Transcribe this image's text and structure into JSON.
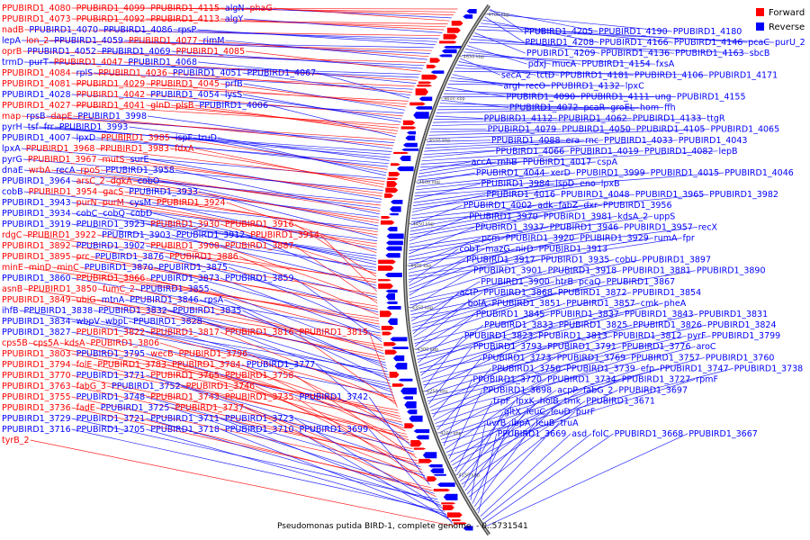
{
  "caption": "Pseudomonas putida BIRD-1, complete genome. - 0..5731541",
  "legend": {
    "forward_label": "Forward",
    "reverse_label": "Reverse",
    "forward_color": "#ff0000",
    "reverse_color": "#0000ff"
  },
  "ticks": [
    "4700 kbp",
    "4650 kbp",
    "4600 kbp",
    "4550 kbp",
    "4500 kbp",
    "4450 kbp",
    "4400 kbp",
    "4350 kbp",
    "4300 kbp",
    "4250 kbp",
    "4200 kbp",
    "4150 kbp"
  ],
  "left_labels": [
    {
      "t": "PPUBIRD1_4080",
      "s": "f"
    },
    {
      "t": "PPUBIRD1_4099",
      "s": "f"
    },
    {
      "t": "PPUBIRD1_4115",
      "s": "f"
    },
    {
      "t": "algN",
      "s": "r"
    },
    {
      "t": "phaG",
      "s": "f"
    },
    {
      "t": "PPUBIRD1_4073",
      "s": "f"
    },
    {
      "t": "PPUBIRD1_4092",
      "s": "f"
    },
    {
      "t": "PPUBIRD1_4113",
      "s": "f"
    },
    {
      "t": "algY",
      "s": "r"
    },
    {
      "t": "nadB",
      "s": "f"
    },
    {
      "t": "PPUBIRD1_4070",
      "s": "r"
    },
    {
      "t": "PPUBIRD1_4086",
      "s": "r"
    },
    {
      "t": "rpsP",
      "s": "r"
    },
    {
      "t": "lepA",
      "s": "r"
    },
    {
      "t": "lon_2",
      "s": "f"
    },
    {
      "t": "PPUBIRD1_4059",
      "s": "r"
    },
    {
      "t": "PPUBIRD1_4077",
      "s": "f"
    },
    {
      "t": "rimM",
      "s": "r"
    },
    {
      "t": "oprB",
      "s": "f"
    },
    {
      "t": "PPUBIRD1_4052",
      "s": "r"
    },
    {
      "t": "PPUBIRD1_4069",
      "s": "r"
    },
    {
      "t": "PPUBIRD1_4085",
      "s": "f"
    },
    {
      "t": "trmD",
      "s": "r"
    },
    {
      "t": "purT",
      "s": "r"
    },
    {
      "t": "PPUBIRD1_4047",
      "s": "f"
    },
    {
      "t": "PPUBIRD1_4068",
      "s": "r"
    },
    {
      "t": "PPUBIRD1_4084",
      "s": "f"
    },
    {
      "t": "rplS",
      "s": "r"
    },
    {
      "t": "PPUBIRD1_4036",
      "s": "f"
    },
    {
      "t": "PPUBIRD1_4051",
      "s": "r"
    },
    {
      "t": "PPUBIRD1_4067",
      "s": "r"
    },
    {
      "t": "PPUBIRD1_4081",
      "s": "f"
    },
    {
      "t": "PPUBIRD1_4029",
      "s": "f"
    },
    {
      "t": "PPUBIRD1_4045",
      "s": "f"
    },
    {
      "t": "prfB",
      "s": "r"
    },
    {
      "t": "PPUBIRD1_4028",
      "s": "r"
    },
    {
      "t": "PPUBIRD1_4042",
      "s": "f"
    },
    {
      "t": "PPUBIRD1_4054",
      "s": "r"
    },
    {
      "t": "lysS",
      "s": "r"
    },
    {
      "t": "PPUBIRD1_4027",
      "s": "f"
    },
    {
      "t": "PPUBIRD1_4041",
      "s": "f"
    },
    {
      "t": "glnD",
      "s": "f"
    },
    {
      "t": "plsB",
      "s": "f"
    },
    {
      "t": "PPUBIRD1_4006",
      "s": "r"
    },
    {
      "t": "map",
      "s": "f"
    },
    {
      "t": "rpsB",
      "s": "r"
    },
    {
      "t": "dapE",
      "s": "f"
    },
    {
      "t": "PPUBIRD1_3998",
      "s": "r"
    },
    {
      "t": "pyrH",
      "s": "r"
    },
    {
      "t": "tsf",
      "s": "r"
    },
    {
      "t": "frr",
      "s": "r"
    },
    {
      "t": "PPUBIRD1_3993",
      "s": "r"
    },
    {
      "t": "PPUBIRD1_4007",
      "s": "r"
    },
    {
      "t": "lpxD",
      "s": "r"
    },
    {
      "t": "PPUBIRD1_3985",
      "s": "f"
    },
    {
      "t": "ispF",
      "s": "r"
    },
    {
      "t": "truD",
      "s": "r"
    },
    {
      "t": "lpxA",
      "s": "r"
    },
    {
      "t": "PPUBIRD1_3968",
      "s": "f"
    },
    {
      "t": "PPUBIRD1_3983",
      "s": "f"
    },
    {
      "t": "fdxA",
      "s": "f"
    },
    {
      "t": "pyrG",
      "s": "r"
    },
    {
      "t": "PPUBIRD1_3967",
      "s": "f"
    },
    {
      "t": "mutS",
      "s": "f"
    },
    {
      "t": "surE",
      "s": "r"
    },
    {
      "t": "dnaE",
      "s": "r"
    },
    {
      "t": "wrbA",
      "s": "f"
    },
    {
      "t": "recA",
      "s": "r"
    },
    {
      "t": "rpoS",
      "s": "f"
    },
    {
      "t": "PPUBIRD1_3958",
      "s": "r"
    },
    {
      "t": "PPUBIRD1_3964",
      "s": "r"
    },
    {
      "t": "arsC_2",
      "s": "f"
    },
    {
      "t": "dgkA",
      "s": "f"
    },
    {
      "t": "cobO",
      "s": "r"
    },
    {
      "t": "cobB",
      "s": "r"
    },
    {
      "t": "PPUBIRD1_3954",
      "s": "f"
    },
    {
      "t": "gacS",
      "s": "f"
    },
    {
      "t": "PPUBIRD1_3933",
      "s": "r"
    },
    {
      "t": "PPUBIRD1_3943",
      "s": "r"
    },
    {
      "t": "purN",
      "s": "f"
    },
    {
      "t": "purM",
      "s": "f"
    },
    {
      "t": "cysM",
      "s": "r"
    },
    {
      "t": "PPUBIRD1_3924",
      "s": "f"
    },
    {
      "t": "PPUBIRD1_3934",
      "s": "r"
    },
    {
      "t": "cobC",
      "s": "r"
    },
    {
      "t": "cobQ",
      "s": "r"
    },
    {
      "t": "cobD",
      "s": "r"
    },
    {
      "t": "PPUBIRD1_3919",
      "s": "r"
    },
    {
      "t": "PPUBIRD1_3923",
      "s": "r"
    },
    {
      "t": "PPUBIRD1_3930",
      "s": "f"
    },
    {
      "t": "PPUBIRD1_3916",
      "s": "f"
    },
    {
      "t": "rdgC",
      "s": "f"
    },
    {
      "t": "PPUBIRD1_3922",
      "s": "f"
    },
    {
      "t": "PPUBIRD1_3903",
      "s": "r"
    },
    {
      "t": "PPUBIRD1_3912",
      "s": "r"
    },
    {
      "t": "PPUBIRD1_3914",
      "s": "f"
    },
    {
      "t": "PPUBIRD1_3892",
      "s": "f"
    },
    {
      "t": "PPUBIRD1_3902",
      "s": "r"
    },
    {
      "t": "PPUBIRD1_3908",
      "s": "f"
    },
    {
      "t": "PPUBIRD1_3887",
      "s": "f"
    },
    {
      "t": "PPUBIRD1_3895",
      "s": "f"
    },
    {
      "t": "prc",
      "s": "f"
    },
    {
      "t": "PPUBIRD1_3876",
      "s": "r"
    },
    {
      "t": "PPUBIRD1_3886",
      "s": "f"
    },
    {
      "t": "minE",
      "s": "f"
    },
    {
      "t": "minD",
      "s": "f"
    },
    {
      "t": "minC",
      "s": "f"
    },
    {
      "t": "PPUBIRD1_3870",
      "s": "r"
    },
    {
      "t": "PPUBIRD1_3875",
      "s": "r"
    },
    {
      "t": "PPUBIRD1_3860",
      "s": "r"
    },
    {
      "t": "PPUBIRD1_3866",
      "s": "f"
    },
    {
      "t": "PPUBIRD1_3873",
      "s": "r"
    },
    {
      "t": "PPUBIRD1_3859",
      "s": "r"
    },
    {
      "t": "asnB",
      "s": "f"
    },
    {
      "t": "PPUBIRD1_3850",
      "s": "f"
    },
    {
      "t": "fumC_2",
      "s": "f"
    },
    {
      "t": "PPUBIRD1_3855",
      "s": "r"
    },
    {
      "t": "PPUBIRD1_3849",
      "s": "f"
    },
    {
      "t": "ubiG",
      "s": "f"
    },
    {
      "t": "mtnA",
      "s": "r"
    },
    {
      "t": "PPUBIRD1_3846",
      "s": "r"
    },
    {
      "t": "rpsA",
      "s": "r"
    },
    {
      "t": "ihfB",
      "s": "r"
    },
    {
      "t": "PPUBIRD1_3838",
      "s": "r"
    },
    {
      "t": "PPUBIRD1_3832",
      "s": "r"
    },
    {
      "t": "PPUBIRD1_3835",
      "s": "r"
    },
    {
      "t": "PPUBIRD1_3834",
      "s": "r"
    },
    {
      "t": "wbpV",
      "s": "r"
    },
    {
      "t": "wbpL",
      "s": "r"
    },
    {
      "t": "PPUBIRD1_3828",
      "s": "r"
    },
    {
      "t": "PPUBIRD1_3827",
      "s": "r"
    },
    {
      "t": "PPUBIRD1_3822",
      "s": "f"
    },
    {
      "t": "PPUBIRD1_3817",
      "s": "f"
    },
    {
      "t": "PPUBIRD1_3816",
      "s": "f"
    },
    {
      "t": "PPUBIRD1_3815",
      "s": "f"
    },
    {
      "t": "cps5B",
      "s": "f"
    },
    {
      "t": "cps5A",
      "s": "f"
    },
    {
      "t": "kdsA",
      "s": "f"
    },
    {
      "t": "PPUBIRD1_3806",
      "s": "f"
    },
    {
      "t": "PPUBIRD1_3803",
      "s": "f"
    },
    {
      "t": "PPUBIRD1_3795",
      "s": "r"
    },
    {
      "t": "wecB",
      "s": "f"
    },
    {
      "t": "PPUBIRD1_3796",
      "s": "f"
    },
    {
      "t": "PPUBIRD1_3794",
      "s": "f"
    },
    {
      "t": "folE",
      "s": "f"
    },
    {
      "t": "PPUBIRD1_3783",
      "s": "f"
    },
    {
      "t": "PPUBIRD1_3784",
      "s": "f"
    },
    {
      "t": "PPUBIRD1_3777",
      "s": "r"
    },
    {
      "t": "PPUBIRD1_3770",
      "s": "f"
    },
    {
      "t": "PPUBIRD1_3771",
      "s": "r"
    },
    {
      "t": "PPUBIRD1_3765",
      "s": "f"
    },
    {
      "t": "PPUBIRD1_3758",
      "s": "f"
    },
    {
      "t": "PPUBIRD1_3763",
      "s": "f"
    },
    {
      "t": "fabG_3",
      "s": "f"
    },
    {
      "t": "PPUBIRD1_3752",
      "s": "r"
    },
    {
      "t": "PPUBIRD1_3746",
      "s": "f"
    },
    {
      "t": "PPUBIRD1_3755",
      "s": "f"
    },
    {
      "t": "PPUBIRD1_3748",
      "s": "r"
    },
    {
      "t": "PPUBIRD1_3743",
      "s": "f"
    },
    {
      "t": "PPUBIRD1_3735",
      "s": "f"
    },
    {
      "t": "PPUBIRD1_3742",
      "s": "r"
    },
    {
      "t": "PPUBIRD1_3736",
      "s": "f"
    },
    {
      "t": "fadE",
      "s": "f"
    },
    {
      "t": "PPUBIRD1_3725",
      "s": "r"
    },
    {
      "t": "PPUBIRD1_3737",
      "s": "f"
    },
    {
      "t": "PPUBIRD1_3729",
      "s": "r"
    },
    {
      "t": "PPUBIRD1_3721",
      "s": "r"
    },
    {
      "t": "PPUBIRD1_3711",
      "s": "r"
    },
    {
      "t": "PPUBIRD1_3723",
      "s": "r"
    },
    {
      "t": "PPUBIRD1_3716",
      "s": "r"
    },
    {
      "t": "PPUBIRD1_3705",
      "s": "r"
    },
    {
      "t": "PPUBIRD1_3718",
      "s": "r"
    },
    {
      "t": "PPUBIRD1_3710",
      "s": "r"
    },
    {
      "t": "PPUBIRD1_3699",
      "s": "r"
    },
    {
      "t": "tyrB_2",
      "s": "f"
    }
  ],
  "right_labels": [
    {
      "t": "PPUBIRD1_4205",
      "s": "r"
    },
    {
      "t": "PPUBIRD1_4190",
      "s": "r"
    },
    {
      "t": "PPUBIRD1_4180",
      "s": "r"
    },
    {
      "t": "PPUBIRD1_4208",
      "s": "r"
    },
    {
      "t": "PPUBIRD1_4166",
      "s": "r"
    },
    {
      "t": "PPUBIRD1_4146",
      "s": "r"
    },
    {
      "t": "pcaC",
      "s": "r"
    },
    {
      "t": "purU_2",
      "s": "r"
    },
    {
      "t": "PPUBIRD1_4209",
      "s": "r"
    },
    {
      "t": "PPUBIRD1_4136",
      "s": "r"
    },
    {
      "t": "PPUBIRD1_4163",
      "s": "r"
    },
    {
      "t": "sbcB",
      "s": "r"
    },
    {
      "t": "pdxJ",
      "s": "r"
    },
    {
      "t": "mucA",
      "s": "r"
    },
    {
      "t": "PPUBIRD1_4154",
      "s": "r"
    },
    {
      "t": "fxsA",
      "s": "r"
    },
    {
      "t": "secA_2",
      "s": "r"
    },
    {
      "t": "tctD",
      "s": "r"
    },
    {
      "t": "PPUBIRD1_4181",
      "s": "r"
    },
    {
      "t": "PPUBIRD1_4106",
      "s": "r"
    },
    {
      "t": "PPUBIRD1_4171",
      "s": "r"
    },
    {
      "t": "argI",
      "s": "r"
    },
    {
      "t": "recO",
      "s": "r"
    },
    {
      "t": "PPUBIRD1_4132",
      "s": "r"
    },
    {
      "t": "lpxC",
      "s": "r"
    },
    {
      "t": "PPUBIRD1_4090",
      "s": "r"
    },
    {
      "t": "PPUBIRD1_4111",
      "s": "r"
    },
    {
      "t": "ung",
      "s": "r"
    },
    {
      "t": "PPUBIRD1_4155",
      "s": "r"
    },
    {
      "t": "PPUBIRD1_4072",
      "s": "r"
    },
    {
      "t": "pcaR",
      "s": "r"
    },
    {
      "t": "groEL",
      "s": "r"
    },
    {
      "t": "hom",
      "s": "r"
    },
    {
      "t": "ffh",
      "s": "r"
    },
    {
      "t": "PPUBIRD1_4112",
      "s": "r"
    },
    {
      "t": "PPUBIRD1_4062",
      "s": "r"
    },
    {
      "t": "PPUBIRD1_4133",
      "s": "r"
    },
    {
      "t": "ttgR",
      "s": "r"
    },
    {
      "t": "PPUBIRD1_4079",
      "s": "r"
    },
    {
      "t": "PPUBIRD1_4050",
      "s": "r"
    },
    {
      "t": "PPUBIRD1_4105",
      "s": "r"
    },
    {
      "t": "PPUBIRD1_4065",
      "s": "r"
    },
    {
      "t": "PPUBIRD1_4088",
      "s": "r"
    },
    {
      "t": "era",
      "s": "r"
    },
    {
      "t": "rnc",
      "s": "r"
    },
    {
      "t": "PPUBIRD1_4033",
      "s": "r"
    },
    {
      "t": "PPUBIRD1_4043",
      "s": "r"
    },
    {
      "t": "PPUBIRD1_4066",
      "s": "r"
    },
    {
      "t": "PPUBIRD1_4019",
      "s": "r"
    },
    {
      "t": "PPUBIRD1_4082",
      "s": "r"
    },
    {
      "t": "lepB",
      "s": "r"
    },
    {
      "t": "accA",
      "s": "r"
    },
    {
      "t": "rnhB",
      "s": "r"
    },
    {
      "t": "PPUBIRD1_4017",
      "s": "r"
    },
    {
      "t": "cspA",
      "s": "r"
    },
    {
      "t": "PPUBIRD1_4044",
      "s": "r"
    },
    {
      "t": "xerD",
      "s": "r"
    },
    {
      "t": "PPUBIRD1_3999",
      "s": "r"
    },
    {
      "t": "PPUBIRD1_4015",
      "s": "r"
    },
    {
      "t": "PPUBIRD1_4046",
      "s": "r"
    },
    {
      "t": "PPUBIRD1_3984",
      "s": "r"
    },
    {
      "t": "ispD",
      "s": "r"
    },
    {
      "t": "eno",
      "s": "r"
    },
    {
      "t": "lpxB",
      "s": "r"
    },
    {
      "t": "PPUBIRD1_4016",
      "s": "r"
    },
    {
      "t": "PPUBIRD1_4048",
      "s": "r"
    },
    {
      "t": "PPUBIRD1_3965",
      "s": "r"
    },
    {
      "t": "PPUBIRD1_3982",
      "s": "r"
    },
    {
      "t": "PPUBIRD1_4002",
      "s": "r"
    },
    {
      "t": "adk",
      "s": "r"
    },
    {
      "t": "fabZ",
      "s": "r"
    },
    {
      "t": "dxr",
      "s": "r"
    },
    {
      "t": "PPUBIRD1_3956",
      "s": "r"
    },
    {
      "t": "PPUBIRD1_3970",
      "s": "r"
    },
    {
      "t": "PPUBIRD1_3981",
      "s": "r"
    },
    {
      "t": "kdsA_2",
      "s": "r"
    },
    {
      "t": "uppS",
      "s": "r"
    },
    {
      "t": "PPUBIRD1_3937",
      "s": "r"
    },
    {
      "t": "PPUBIRD1_3946",
      "s": "r"
    },
    {
      "t": "PPUBIRD1_3957",
      "s": "r"
    },
    {
      "t": "recX",
      "s": "r"
    },
    {
      "t": "pcm",
      "s": "r"
    },
    {
      "t": "PPUBIRD1_3920",
      "s": "r"
    },
    {
      "t": "PPUBIRD1_3929",
      "s": "r"
    },
    {
      "t": "rumA",
      "s": "r"
    },
    {
      "t": "fpr",
      "s": "r"
    },
    {
      "t": "cobT",
      "s": "r"
    },
    {
      "t": "mazG",
      "s": "r"
    },
    {
      "t": "nirD",
      "s": "r"
    },
    {
      "t": "PPUBIRD1_3913",
      "s": "r"
    },
    {
      "t": "PPUBIRD1_3917",
      "s": "r"
    },
    {
      "t": "PPUBIRD1_3935",
      "s": "r"
    },
    {
      "t": "cobU",
      "s": "r"
    },
    {
      "t": "PPUBIRD1_3897",
      "s": "r"
    },
    {
      "t": "PPUBIRD1_3901",
      "s": "r"
    },
    {
      "t": "PPUBIRD1_3918",
      "s": "r"
    },
    {
      "t": "PPUBIRD1_3881",
      "s": "r"
    },
    {
      "t": "PPUBIRD1_3890",
      "s": "r"
    },
    {
      "t": "PPUBIRD1_3900",
      "s": "r"
    },
    {
      "t": "htrB",
      "s": "r"
    },
    {
      "t": "pcaQ",
      "s": "r"
    },
    {
      "t": "PPUBIRD1_3867",
      "s": "r"
    },
    {
      "t": "actP",
      "s": "r"
    },
    {
      "t": "PPUBIRD1_3868",
      "s": "r"
    },
    {
      "t": "PPUBIRD1_3872",
      "s": "r"
    },
    {
      "t": "PPUBIRD1_3854",
      "s": "r"
    },
    {
      "t": "bolA",
      "s": "r"
    },
    {
      "t": "PPUBIRD1_3851",
      "s": "r"
    },
    {
      "t": "PPUBIRD1_3857",
      "s": "r"
    },
    {
      "t": "cmk",
      "s": "r"
    },
    {
      "t": "pheA",
      "s": "r"
    },
    {
      "t": "PPUBIRD1_3845",
      "s": "r"
    },
    {
      "t": "PPUBIRD1_3837",
      "s": "r"
    },
    {
      "t": "PPUBIRD1_3843",
      "s": "r"
    },
    {
      "t": "PPUBIRD1_3831",
      "s": "r"
    },
    {
      "t": "PPUBIRD1_3833",
      "s": "r"
    },
    {
      "t": "PPUBIRD1_3825",
      "s": "r"
    },
    {
      "t": "PPUBIRD1_3826",
      "s": "r"
    },
    {
      "t": "PPUBIRD1_3824",
      "s": "r"
    },
    {
      "t": "PPUBIRD1_3823",
      "s": "r"
    },
    {
      "t": "PPUBIRD1_3813",
      "s": "r"
    },
    {
      "t": "PPUBIRD1_3812",
      "s": "r"
    },
    {
      "t": "pyrF",
      "s": "r"
    },
    {
      "t": "PPUBIRD1_3799",
      "s": "r"
    },
    {
      "t": "PPUBIRD1_3793",
      "s": "r"
    },
    {
      "t": "PPUBIRD1_3791",
      "s": "r"
    },
    {
      "t": "PPUBIRD1_3776",
      "s": "r"
    },
    {
      "t": "aroC",
      "s": "r"
    },
    {
      "t": "PPUBIRD1_3773",
      "s": "r"
    },
    {
      "t": "PPUBIRD1_3769",
      "s": "r"
    },
    {
      "t": "PPUBIRD1_3757",
      "s": "r"
    },
    {
      "t": "PPUBIRD1_3760",
      "s": "r"
    },
    {
      "t": "PPUBIRD1_3750",
      "s": "r"
    },
    {
      "t": "PPUBIRD1_3739",
      "s": "r"
    },
    {
      "t": "efp",
      "s": "r"
    },
    {
      "t": "PPUBIRD1_3747",
      "s": "r"
    },
    {
      "t": "PPUBIRD1_3738",
      "s": "r"
    },
    {
      "t": "PPUBIRD1_3720",
      "s": "r"
    },
    {
      "t": "PPUBIRD1_3734",
      "s": "r"
    },
    {
      "t": "PPUBIRD1_3727",
      "s": "r"
    },
    {
      "t": "rpmF",
      "s": "r"
    },
    {
      "t": "PPUBIRD1_3698",
      "s": "r"
    },
    {
      "t": "acpP",
      "s": "r"
    },
    {
      "t": "fabG_2",
      "s": "r"
    },
    {
      "t": "PPUBIRD1_3697",
      "s": "r"
    },
    {
      "t": "trpF",
      "s": "r"
    },
    {
      "t": "lpxK",
      "s": "r"
    },
    {
      "t": "holB",
      "s": "r"
    },
    {
      "t": "tmk",
      "s": "r"
    },
    {
      "t": "PPUBIRD1_3671",
      "s": "r"
    },
    {
      "t": "gltX",
      "s": "r"
    },
    {
      "t": "leuC",
      "s": "r"
    },
    {
      "t": "leuD",
      "s": "r"
    },
    {
      "t": "purF",
      "s": "r"
    },
    {
      "t": "uvrB",
      "s": "r"
    },
    {
      "t": "ibpA",
      "s": "r"
    },
    {
      "t": "leuB",
      "s": "r"
    },
    {
      "t": "truA",
      "s": "r"
    },
    {
      "t": "PPUBIRD1_3669",
      "s": "r"
    },
    {
      "t": "asd",
      "s": "r"
    },
    {
      "t": "folC",
      "s": "r"
    },
    {
      "t": "PPUBIRD1_3668",
      "s": "r"
    },
    {
      "t": "PPUBIRD1_3667",
      "s": "r"
    }
  ]
}
